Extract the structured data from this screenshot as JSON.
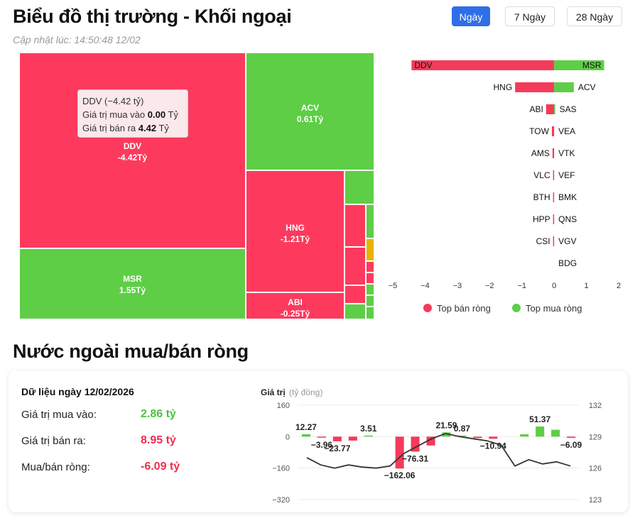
{
  "header": {
    "title": "Biểu đồ thị trường - Khối ngoại",
    "updated": "Cập nhật lúc: 14:50:48 12/02",
    "tabs": [
      {
        "label": "Ngày",
        "active": true
      },
      {
        "label": "7 Ngày",
        "active": false
      },
      {
        "label": "28 Ngày",
        "active": false
      }
    ]
  },
  "treemap": {
    "cells": [
      {
        "code": "DDV",
        "value": "-4.42Tỷ",
        "color": "#fd3a5e"
      },
      {
        "code": "MSR",
        "value": "1.55Tỷ",
        "color": "#5ece46"
      },
      {
        "code": "ACV",
        "value": "0.61Tỷ",
        "color": "#5ece46"
      },
      {
        "code": "HNG",
        "value": "-1.21Tỷ",
        "color": "#fd3a5e"
      },
      {
        "code": "ABI",
        "value": "-0.25Tỷ",
        "color": "#fd3a5e"
      }
    ],
    "tooltip": {
      "title": "DDV (−4.42 tỷ)",
      "buy_label": "Giá trị mua vào",
      "buy_value": "0.00",
      "buy_unit": "Tỷ",
      "sell_label": "Giá trị bán ra",
      "sell_value": "4.42",
      "sell_unit": "Tỷ"
    }
  },
  "colors": {
    "sell": "#f43b5a",
    "buy": "#5ece46",
    "accent": "#2f6ee8",
    "amber": "#e6b400"
  },
  "chart_data": [
    {
      "type": "bar",
      "orientation": "horizontal",
      "xlim": [
        -5,
        2
      ],
      "xticks": [
        "−5",
        "−4",
        "−3",
        "−2",
        "−1",
        "0",
        "1",
        "2"
      ],
      "pairs": [
        {
          "sell_code": "DDV",
          "sell": -4.42,
          "buy_code": "MSR",
          "buy": 1.55
        },
        {
          "sell_code": "HNG",
          "sell": -1.21,
          "buy_code": "ACV",
          "buy": 0.61
        },
        {
          "sell_code": "ABI",
          "sell": -0.25,
          "buy_code": "SAS",
          "buy": 0.03
        },
        {
          "sell_code": "TOW",
          "sell": -0.07,
          "buy_code": "VEA",
          "buy": 0.0
        },
        {
          "sell_code": "AMS",
          "sell": -0.05,
          "buy_code": "VTK",
          "buy": 0.0
        },
        {
          "sell_code": "VLC",
          "sell": -0.02,
          "buy_code": "VEF",
          "buy": 0.0
        },
        {
          "sell_code": "BTH",
          "sell": -0.01,
          "buy_code": "BMK",
          "buy": 0.0
        },
        {
          "sell_code": "HPP",
          "sell": -0.01,
          "buy_code": "QNS",
          "buy": 0.0
        },
        {
          "sell_code": "CSI",
          "sell": -0.01,
          "buy_code": "VGV",
          "buy": 0.0
        },
        {
          "sell_code": "",
          "sell": 0,
          "buy_code": "BDG",
          "buy": 0.0
        }
      ],
      "legend": [
        {
          "name": "Top bán ròng",
          "color": "#f43b5a"
        },
        {
          "name": "Top mua ròng",
          "color": "#5ece46"
        }
      ]
    },
    {
      "type": "bar",
      "ylabel": "Giá trị",
      "yunit": "(tỷ đồng)",
      "ylim": [
        -320,
        160
      ],
      "yticks": [
        "160",
        "0",
        "−160",
        "−320"
      ],
      "y2lim": [
        123,
        132
      ],
      "y2ticks": [
        "132",
        "129",
        "126",
        "123"
      ],
      "bars": [
        {
          "value": 12.27,
          "label": "12.27"
        },
        {
          "value": -3.96,
          "label": "−3.96"
        },
        {
          "value": -23.77,
          "label": "−23.77"
        },
        {
          "value": -20,
          "label": ""
        },
        {
          "value": 3.51,
          "label": "3.51"
        },
        {
          "value": 0,
          "label": ""
        },
        {
          "value": -162.06,
          "label": "−162.06"
        },
        {
          "value": -76.31,
          "label": "−76.31"
        },
        {
          "value": -45,
          "label": ""
        },
        {
          "value": 21.59,
          "label": "21.59"
        },
        {
          "value": 0.87,
          "label": "0.87"
        },
        {
          "value": -7,
          "label": ""
        },
        {
          "value": -10.94,
          "label": "−10.94"
        },
        {
          "value": 0,
          "label": ""
        },
        {
          "value": 12,
          "label": ""
        },
        {
          "value": 51.37,
          "label": "51.37"
        },
        {
          "value": 35,
          "label": ""
        },
        {
          "value": -6.09,
          "label": "−6.09"
        }
      ],
      "line": [
        127.0,
        126.3,
        126.0,
        126.3,
        126.1,
        126.0,
        126.2,
        127.4,
        128.1,
        128.8,
        129.3,
        129.0,
        128.8,
        128.6,
        128.2,
        126.2,
        126.8,
        126.4,
        126.6,
        126.2
      ]
    }
  ],
  "net_section": {
    "title": "Nước ngoài mua/bán ròng",
    "date_label": "Dữ liệu ngày 12/02/2026",
    "rows": [
      {
        "label": "Giá trị mua vào:",
        "value": "2.86 tỷ"
      },
      {
        "label": "Giá trị bán ra:",
        "value": "8.95 tỷ"
      },
      {
        "label": "Mua/bán ròng:",
        "value": "-6.09 tỷ"
      }
    ]
  }
}
